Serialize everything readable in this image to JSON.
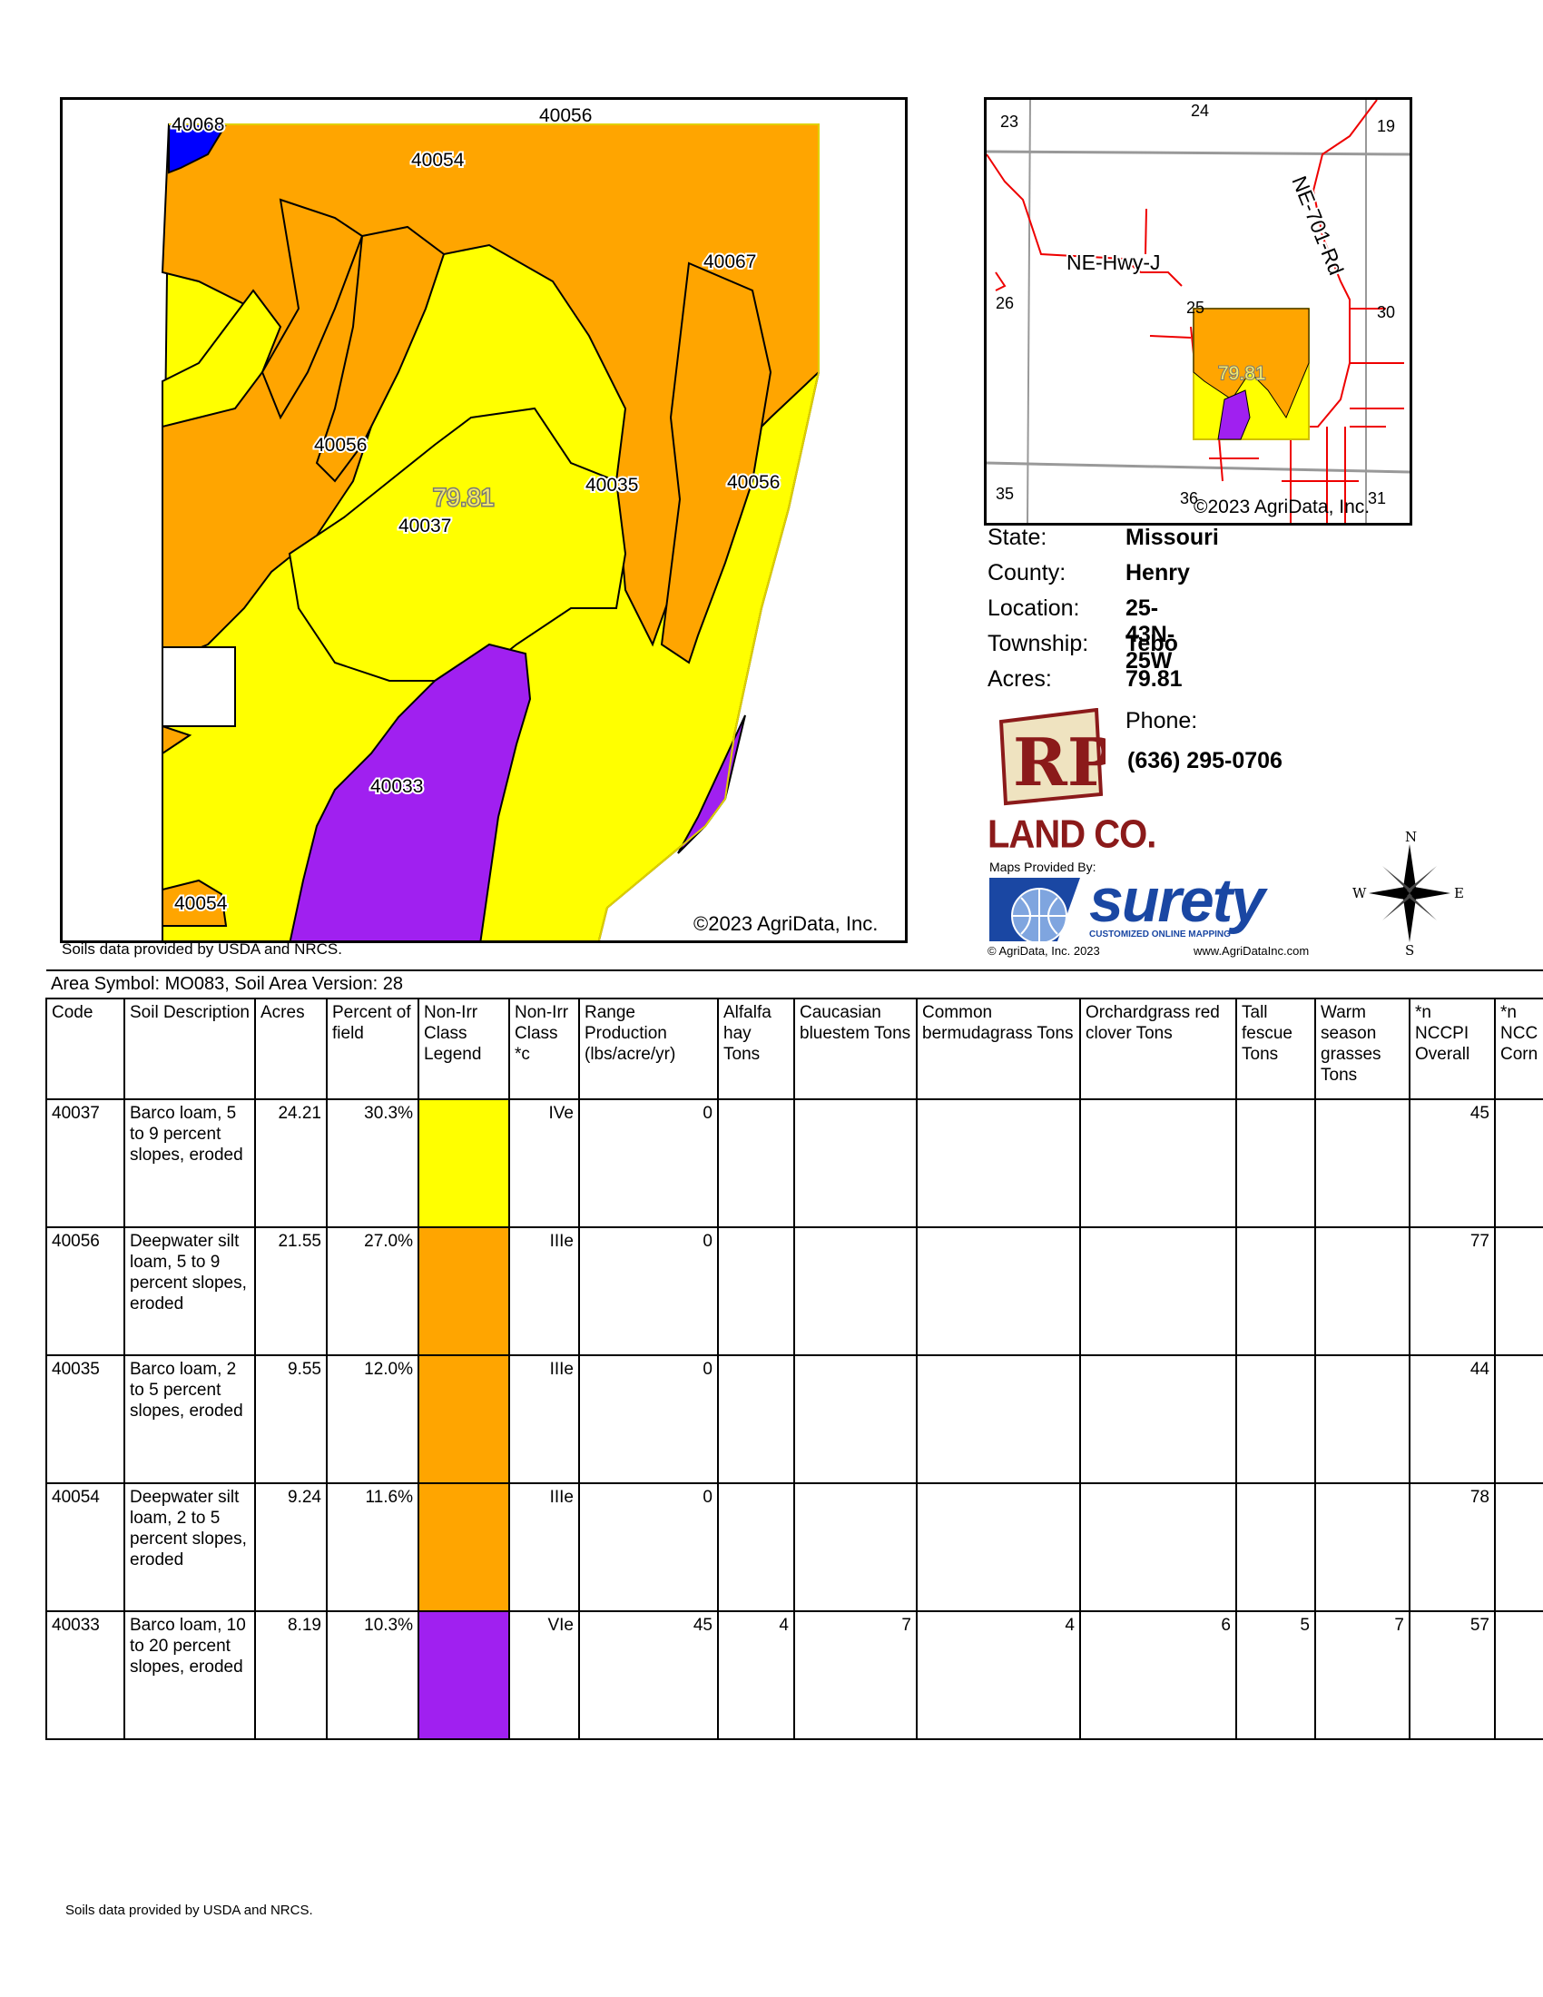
{
  "main_map": {
    "labels": {
      "l40068": "40068",
      "l40056_top": "40056",
      "l40054_top": "40054",
      "l40067": "40067",
      "l40056_mid": "40056",
      "l40035": "40035",
      "l40056_right": "40056",
      "l40037": "40037",
      "l40033": "40033",
      "l40054_bottom": "40054",
      "acres": "79.81"
    },
    "copyright": "©2023 AgriData, Inc.",
    "source": "Soils data provided by USDA and NRCS.",
    "colors": {
      "yellow": "#ffff00",
      "orange": "#ffa500",
      "purple": "#a020f0",
      "blue": "#0000ff"
    }
  },
  "locator_map": {
    "sections": {
      "s23": "23",
      "s24": "24",
      "s19": "19",
      "s26": "26",
      "s25": "25",
      "s30": "30",
      "s35": "35",
      "s36": "36",
      "s31": "31"
    },
    "roads": {
      "hwy": "NE-Hwy-J",
      "rd": "NE-701-Rd"
    },
    "acres": "79.81",
    "copyright": "©2023 AgriData, Inc."
  },
  "info": {
    "state_key": "State:",
    "state_val": "Missouri",
    "county_key": "County:",
    "county_val": "Henry",
    "location_key": "Location:",
    "location_val": "25-43N-25W",
    "township_key": "Township:",
    "township_val": "Tebo",
    "acres_key": "Acres:",
    "acres_val": "79.81",
    "phone_key": "Phone:",
    "phone_val": "(636) 295-0706"
  },
  "branding": {
    "rp_logo_text": "RP",
    "land_co": "LAND CO.",
    "maps_provided": "Maps Provided By:",
    "surety": "surety",
    "surety_tag": "CUSTOMIZED ONLINE MAPPING",
    "agridata_copy": "© AgriData, Inc. 2023",
    "agridata_url": "www.AgriDataInc.com",
    "compass": {
      "n": "N",
      "s": "S",
      "e": "E",
      "w": "W"
    }
  },
  "table": {
    "area_symbol": "Area Symbol: MO083, Soil Area Version: 28",
    "headers": [
      "Code",
      "Soil Description",
      "Acres",
      "Percent of field",
      "Non-Irr Class Legend",
      "Non-Irr Class *c",
      "Range Production (lbs/acre/yr)",
      "Alfalfa hay Tons",
      "Caucasian bluestem Tons",
      "Common bermudagrass Tons",
      "Orchardgrass red clover Tons",
      "Tall fescue Tons",
      "Warm season grasses Tons",
      "*n NCCPI Overall",
      "*n NCC Corn"
    ],
    "rows": [
      {
        "code": "40037",
        "desc": "Barco loam, 5 to 9 percent slopes, eroded",
        "acres": "24.21",
        "pct": "30.3%",
        "color": "#ffff00",
        "cls": "IVe",
        "range": "0",
        "alfalfa": "",
        "cauc": "",
        "berm": "",
        "orch": "",
        "tall": "",
        "warm": "",
        "nccpi": "45",
        "ncccorn": ""
      },
      {
        "code": "40056",
        "desc": "Deepwater silt loam, 5 to 9 percent slopes, eroded",
        "acres": "21.55",
        "pct": "27.0%",
        "color": "#ffa500",
        "cls": "IIIe",
        "range": "0",
        "alfalfa": "",
        "cauc": "",
        "berm": "",
        "orch": "",
        "tall": "",
        "warm": "",
        "nccpi": "77",
        "ncccorn": ""
      },
      {
        "code": "40035",
        "desc": "Barco loam, 2 to 5 percent slopes, eroded",
        "acres": "9.55",
        "pct": "12.0%",
        "color": "#ffa500",
        "cls": "IIIe",
        "range": "0",
        "alfalfa": "",
        "cauc": "",
        "berm": "",
        "orch": "",
        "tall": "",
        "warm": "",
        "nccpi": "44",
        "ncccorn": ""
      },
      {
        "code": "40054",
        "desc": "Deepwater silt loam, 2 to 5 percent slopes, eroded",
        "acres": "9.24",
        "pct": "11.6%",
        "color": "#ffa500",
        "cls": "IIIe",
        "range": "0",
        "alfalfa": "",
        "cauc": "",
        "berm": "",
        "orch": "",
        "tall": "",
        "warm": "",
        "nccpi": "78",
        "ncccorn": ""
      },
      {
        "code": "40033",
        "desc": "Barco loam, 10 to 20 percent slopes, eroded",
        "acres": "8.19",
        "pct": "10.3%",
        "color": "#a020f0",
        "cls": "VIe",
        "range": "45",
        "alfalfa": "4",
        "cauc": "7",
        "berm": "4",
        "orch": "6",
        "tall": "5",
        "warm": "7",
        "nccpi": "57",
        "ncccorn": ""
      }
    ]
  },
  "footer": {
    "source": "Soils data provided by USDA and NRCS."
  }
}
